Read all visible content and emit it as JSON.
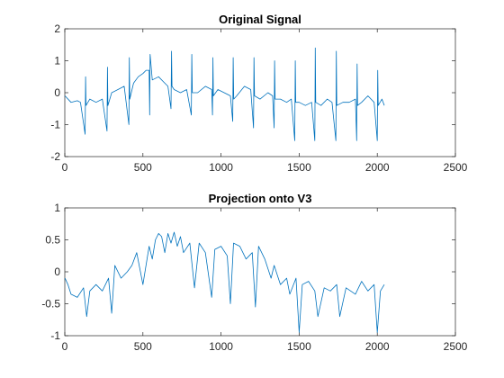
{
  "chart_data": [
    {
      "type": "line",
      "title": "Original Signal",
      "xlabel": "",
      "ylabel": "",
      "xlim": [
        0,
        2500
      ],
      "ylim": [
        -2,
        2
      ],
      "xticks": [
        0,
        500,
        1000,
        1500,
        2000,
        2500
      ],
      "yticks": [
        -2,
        -1,
        0,
        1,
        2
      ],
      "grid": false,
      "color": "#0072BD",
      "x": [
        1,
        40,
        80,
        100,
        130,
        133,
        136,
        160,
        200,
        240,
        270,
        273,
        276,
        300,
        340,
        380,
        410,
        413,
        416,
        440,
        470,
        500,
        520,
        540,
        543,
        546,
        560,
        600,
        640,
        660,
        680,
        683,
        686,
        700,
        740,
        780,
        810,
        813,
        816,
        850,
        900,
        940,
        945,
        948,
        951,
        980,
        1020,
        1060,
        1075,
        1078,
        1081,
        1100,
        1150,
        1190,
        1208,
        1211,
        1214,
        1250,
        1300,
        1330,
        1340,
        1343,
        1346,
        1380,
        1420,
        1450,
        1472,
        1475,
        1478,
        1500,
        1540,
        1580,
        1600,
        1603,
        1606,
        1640,
        1680,
        1710,
        1735,
        1738,
        1741,
        1780,
        1820,
        1860,
        1868,
        1871,
        1874,
        1900,
        1940,
        1980,
        2000,
        2003,
        2006,
        2030,
        2045
      ],
      "y": [
        -0.1,
        -0.3,
        -0.25,
        -0.3,
        -1.3,
        0.5,
        -0.4,
        -0.2,
        -0.3,
        -0.2,
        -1.2,
        0.8,
        -0.4,
        0.0,
        0.1,
        0.2,
        -1.0,
        1.1,
        -0.2,
        0.3,
        0.5,
        0.6,
        0.7,
        0.7,
        -0.7,
        1.2,
        0.4,
        0.5,
        0.3,
        0.2,
        -0.5,
        1.3,
        0.2,
        0.1,
        0.0,
        0.1,
        -0.7,
        1.2,
        0.0,
        0.0,
        0.2,
        0.1,
        -0.7,
        1.1,
        -0.1,
        0.1,
        0.0,
        -0.1,
        -0.9,
        1.1,
        -0.2,
        -0.1,
        0.2,
        0.1,
        -1.1,
        1.1,
        -0.1,
        -0.2,
        0.0,
        -0.1,
        -1.1,
        1.0,
        -0.2,
        -0.2,
        -0.3,
        -0.2,
        -1.5,
        1.0,
        -0.3,
        -0.3,
        -0.4,
        -0.3,
        -1.5,
        1.4,
        -0.3,
        -0.4,
        -0.2,
        -0.3,
        -1.5,
        1.3,
        -0.4,
        -0.3,
        -0.3,
        -0.2,
        -1.5,
        0.9,
        -0.4,
        -0.3,
        -0.1,
        -0.3,
        -1.5,
        0.7,
        -0.4,
        -0.2,
        -0.4
      ]
    },
    {
      "type": "line",
      "title": "Projection onto V3",
      "xlabel": "",
      "ylabel": "",
      "xlim": [
        0,
        2500
      ],
      "ylim": [
        -1,
        1
      ],
      "xticks": [
        0,
        500,
        1000,
        1500,
        2000,
        2500
      ],
      "yticks": [
        -1,
        -0.5,
        0,
        0.5,
        1
      ],
      "grid": false,
      "color": "#0072BD",
      "x": [
        1,
        20,
        40,
        80,
        120,
        140,
        160,
        200,
        240,
        280,
        300,
        320,
        360,
        400,
        430,
        460,
        500,
        540,
        560,
        580,
        600,
        620,
        640,
        660,
        680,
        700,
        720,
        740,
        760,
        800,
        830,
        860,
        900,
        940,
        960,
        1000,
        1040,
        1060,
        1080,
        1120,
        1160,
        1200,
        1220,
        1240,
        1280,
        1320,
        1340,
        1380,
        1420,
        1440,
        1480,
        1500,
        1520,
        1560,
        1600,
        1620,
        1660,
        1700,
        1740,
        1760,
        1800,
        1860,
        1900,
        1940,
        1980,
        2000,
        2020,
        2045
      ],
      "y": [
        -0.1,
        -0.2,
        -0.35,
        -0.4,
        -0.25,
        -0.7,
        -0.3,
        -0.2,
        -0.3,
        -0.1,
        -0.65,
        0.1,
        -0.1,
        0.0,
        0.1,
        0.3,
        -0.2,
        0.4,
        0.2,
        0.5,
        0.6,
        0.55,
        0.3,
        0.6,
        0.45,
        0.62,
        0.4,
        0.55,
        0.3,
        0.45,
        -0.25,
        0.45,
        0.3,
        -0.4,
        0.35,
        0.4,
        0.25,
        -0.5,
        0.45,
        0.4,
        0.2,
        0.3,
        -0.55,
        0.4,
        0.2,
        -0.1,
        0.1,
        -0.2,
        -0.1,
        -0.35,
        -0.1,
        -0.95,
        -0.2,
        -0.15,
        -0.3,
        -0.7,
        -0.25,
        -0.3,
        -0.2,
        -0.7,
        -0.25,
        -0.35,
        -0.15,
        -0.3,
        -0.2,
        -0.95,
        -0.3,
        -0.2
      ]
    }
  ]
}
